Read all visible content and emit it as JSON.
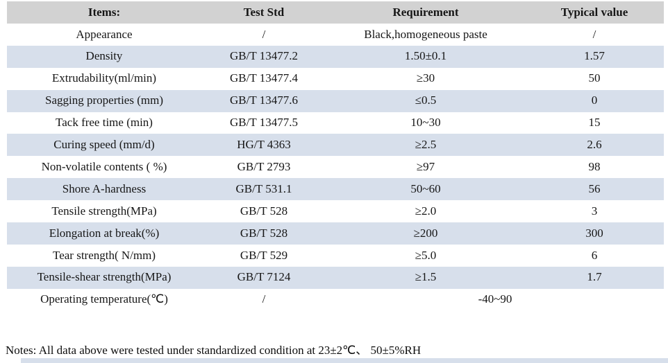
{
  "table": {
    "headers": {
      "item": "Items:",
      "std": "Test Std",
      "req": "Requirement",
      "typ": "Typical value"
    },
    "rows": [
      {
        "item": "Appearance",
        "std": "/",
        "req": "Black,homogeneous paste",
        "typ": "/"
      },
      {
        "item": "Density",
        "std": "GB/T 13477.2",
        "req": "1.50±0.1",
        "typ": "1.57"
      },
      {
        "item": "Extrudability(ml/min)",
        "std": "GB/T 13477.4",
        "req": "≥30",
        "typ": "50"
      },
      {
        "item": "Sagging properties (mm)",
        "std": "GB/T 13477.6",
        "req": "≤0.5",
        "typ": "0"
      },
      {
        "item": "Tack free time (min)",
        "std": "GB/T 13477.5",
        "req": "10~30",
        "typ": "15"
      },
      {
        "item": "Curing speed (mm/d)",
        "std": "HG/T 4363",
        "req": "≥2.5",
        "typ": "2.6"
      },
      {
        "item": "Non-volatile contents ( %)",
        "std": "GB/T 2793",
        "req": "≥97",
        "typ": "98"
      },
      {
        "item": "Shore A-hardness",
        "std": "GB/T 531.1",
        "req": "50~60",
        "typ": "56"
      },
      {
        "item": "Tensile strength(MPa)",
        "std": "GB/T 528",
        "req": "≥2.0",
        "typ": "3"
      },
      {
        "item": "Elongation at break(%)",
        "std": "GB/T 528",
        "req": "≥200",
        "typ": "300"
      },
      {
        "item": "Tear strength( N/mm)",
        "std": "GB/T 529",
        "req": "≥5.0",
        "typ": "6"
      },
      {
        "item": "Tensile-shear strength(MPa)",
        "std": "GB/T 7124",
        "req": "≥1.5",
        "typ": "1.7"
      }
    ],
    "last_row": {
      "item": "Operating temperature(℃)",
      "std": "/",
      "merged": "-40~90"
    }
  },
  "notes": "Notes: All data above were tested under standardized condition at 23±2℃、 50±5%RH",
  "colors": {
    "header_bg": "#d2d2d2",
    "stripe_bg": "#d7dfeb",
    "text": "#161616"
  }
}
